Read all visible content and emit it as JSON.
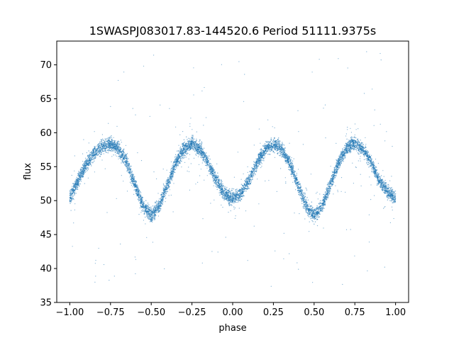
{
  "chart_data": {
    "type": "scatter",
    "title": "1SWASPJ083017.83-144520.6 Period 51111.9375s",
    "xlabel": "phase",
    "ylabel": "flux",
    "xlim": [
      -1.08,
      1.08
    ],
    "ylim": [
      35,
      73.5
    ],
    "x_ticks": [
      -1.0,
      -0.75,
      -0.5,
      -0.25,
      0.0,
      0.25,
      0.5,
      0.75,
      1.0
    ],
    "x_tick_labels": [
      "−1.00",
      "−0.75",
      "−0.50",
      "−0.25",
      "0.00",
      "0.25",
      "0.50",
      "0.75",
      "1.00"
    ],
    "y_ticks": [
      35,
      40,
      45,
      50,
      55,
      60,
      65,
      70
    ],
    "y_tick_labels": [
      "35",
      "40",
      "45",
      "50",
      "55",
      "60",
      "65",
      "70"
    ],
    "grid": false,
    "point_color": "#1f77b4",
    "series": [
      {
        "x": [
          -1.0,
          -0.95,
          -0.9,
          -0.85,
          -0.8,
          -0.75,
          -0.7,
          -0.65,
          -0.6,
          -0.55,
          -0.5,
          -0.45,
          -0.4,
          -0.35,
          -0.3,
          -0.25,
          -0.2,
          -0.15,
          -0.1,
          -0.05,
          0.0,
          0.05,
          0.1,
          0.15,
          0.2,
          0.25,
          0.3,
          0.35,
          0.4,
          0.45,
          0.5,
          0.55,
          0.6,
          0.65,
          0.7,
          0.75,
          0.8,
          0.85,
          0.9,
          0.95,
          1.0
        ],
        "y": [
          50.5,
          52.8,
          55.3,
          57.0,
          58.0,
          58.3,
          57.6,
          55.6,
          52.3,
          49.3,
          47.8,
          49.3,
          52.3,
          55.6,
          57.6,
          58.5,
          57.6,
          55.6,
          53.0,
          51.0,
          50.3,
          51.0,
          53.0,
          55.6,
          57.6,
          58.3,
          57.6,
          55.6,
          52.3,
          49.3,
          47.8,
          49.3,
          52.3,
          55.6,
          57.8,
          58.5,
          57.6,
          55.6,
          53.0,
          51.3,
          50.3
        ],
        "band_halfwidth": 1.0
      }
    ]
  }
}
